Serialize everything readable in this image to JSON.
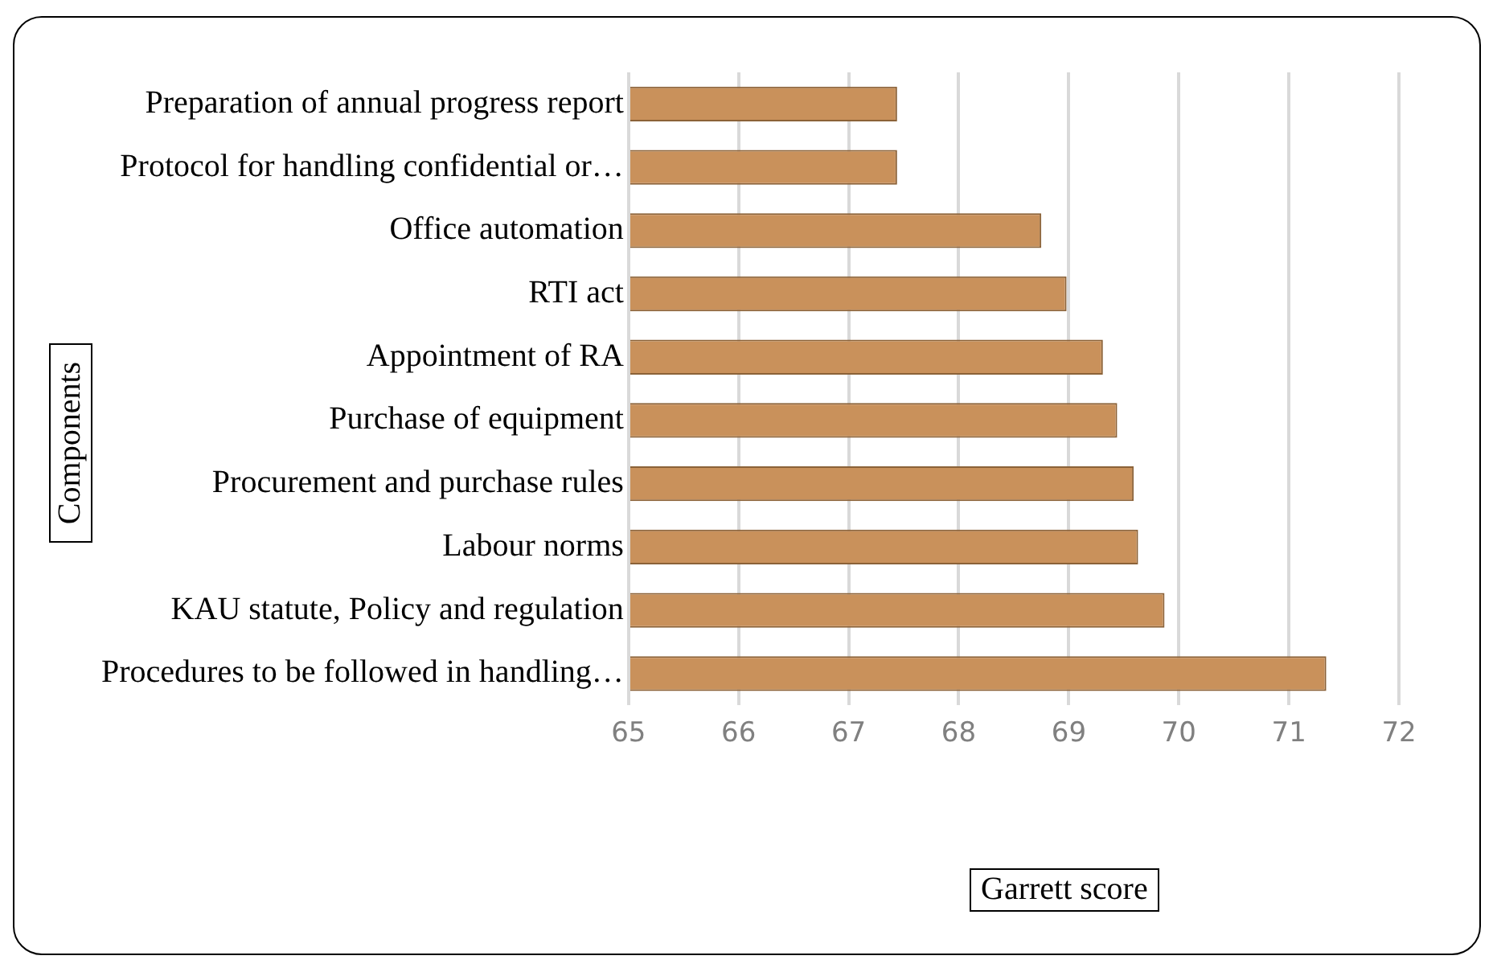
{
  "chart_data": {
    "type": "bar",
    "orientation": "horizontal",
    "categories": [
      "Preparation of annual progress report",
      "Protocol for handling confidential or…",
      "Office automation",
      "RTI act",
      "Appointment of RA",
      "Purchase of equipment",
      "Procurement and purchase rules",
      "Labour norms",
      "KAU statute, Policy and regulation",
      "Procedures to be followed in handling…"
    ],
    "values": [
      67.44,
      67.44,
      68.75,
      68.98,
      69.31,
      69.44,
      69.59,
      69.63,
      69.87,
      71.34
    ],
    "color": "#c9915b",
    "xlim": [
      65,
      72
    ],
    "xticks": [
      65,
      66,
      67,
      68,
      69,
      70,
      71,
      72
    ],
    "xlabel": "Garrett score",
    "ylabel": "Components",
    "grid": "x",
    "legend": false
  }
}
